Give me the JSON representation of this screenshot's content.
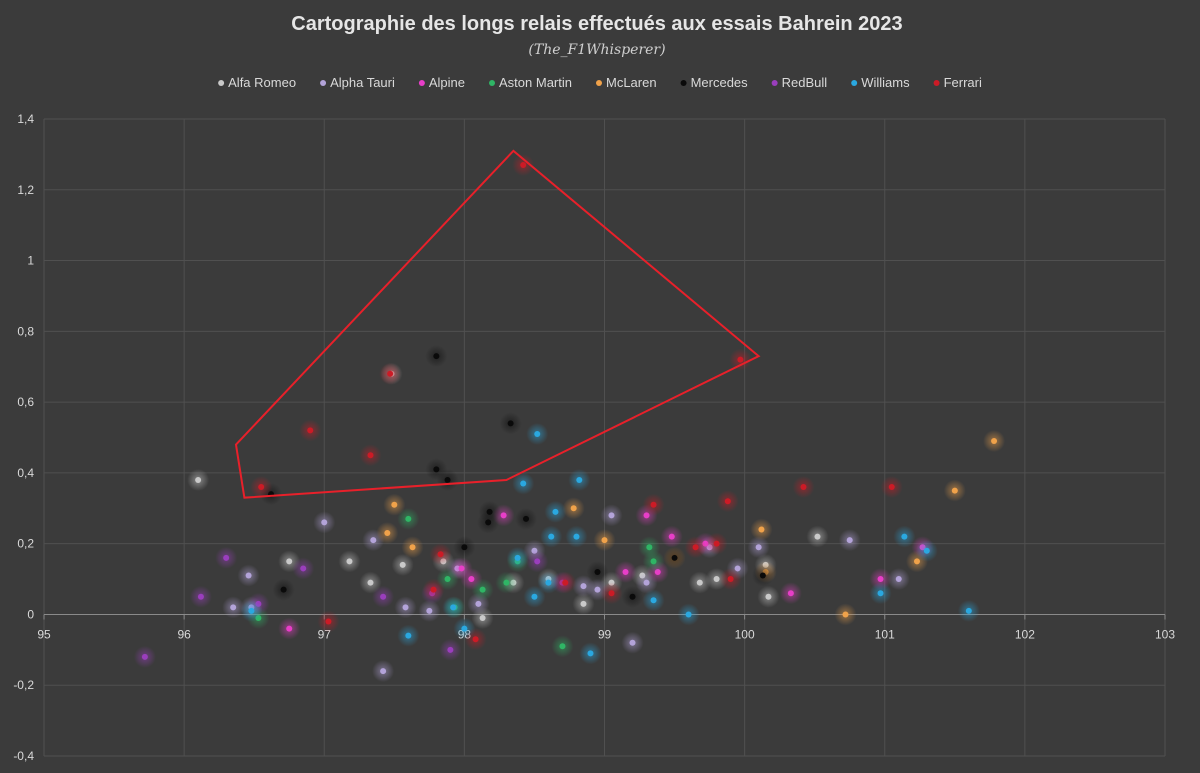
{
  "chart_data": {
    "type": "scatter",
    "title": "Cartographie des longs relais effectués aux essais Bahrein 2023",
    "subtitle": "(The_F1Whisperer)",
    "xlabel": "",
    "ylabel": "",
    "xlim": [
      95,
      103
    ],
    "ylim": [
      -0.4,
      1.4
    ],
    "x_ticks": [
      95,
      96,
      97,
      98,
      99,
      100,
      101,
      102,
      103
    ],
    "x_tick_labels": [
      "95",
      "96",
      "97",
      "98",
      "99",
      "100",
      "101",
      "102",
      "103"
    ],
    "y_ticks": [
      -0.4,
      -0.2,
      0,
      0.2,
      0.4,
      0.6,
      0.8,
      1.0,
      1.2,
      1.4
    ],
    "y_tick_labels": [
      "-0,4",
      "-0,2",
      "0",
      "0,2",
      "0,4",
      "0,6",
      "0,8",
      "1",
      "1,2",
      "1,4"
    ],
    "grid": true,
    "legend_position": "top",
    "highlight_polygon": {
      "color": "#e8202a",
      "points": [
        [
          96.37,
          0.48
        ],
        [
          96.43,
          0.33
        ],
        [
          98.3,
          0.38
        ],
        [
          100.1,
          0.73
        ],
        [
          98.35,
          1.31
        ]
      ]
    },
    "series": [
      {
        "name": "Alfa Romeo",
        "color": "#c9c9c9",
        "points": [
          [
            96.1,
            0.38
          ],
          [
            97.48,
            0.68
          ],
          [
            96.75,
            0.15
          ],
          [
            97.18,
            0.15
          ],
          [
            97.33,
            0.09
          ],
          [
            97.56,
            0.14
          ],
          [
            98.13,
            -0.01
          ],
          [
            98.35,
            0.09
          ],
          [
            98.6,
            0.1
          ],
          [
            98.85,
            0.03
          ],
          [
            99.05,
            0.09
          ],
          [
            99.68,
            0.09
          ],
          [
            99.8,
            0.1
          ],
          [
            100.15,
            0.14
          ],
          [
            100.17,
            0.05
          ],
          [
            100.52,
            0.22
          ],
          [
            99.27,
            0.11
          ],
          [
            97.85,
            0.15
          ]
        ]
      },
      {
        "name": "Alpha Tauri",
        "color": "#b3a3d9",
        "points": [
          [
            96.35,
            0.02
          ],
          [
            96.46,
            0.11
          ],
          [
            96.48,
            0.02
          ],
          [
            97.0,
            0.26
          ],
          [
            97.35,
            0.21
          ],
          [
            97.58,
            0.02
          ],
          [
            97.75,
            0.01
          ],
          [
            97.95,
            0.13
          ],
          [
            98.1,
            0.03
          ],
          [
            98.5,
            0.18
          ],
          [
            98.85,
            0.08
          ],
          [
            98.95,
            0.07
          ],
          [
            99.05,
            0.28
          ],
          [
            99.2,
            -0.08
          ],
          [
            99.3,
            0.09
          ],
          [
            99.75,
            0.19
          ],
          [
            99.95,
            0.13
          ],
          [
            100.1,
            0.19
          ],
          [
            100.75,
            0.21
          ],
          [
            101.1,
            0.1
          ],
          [
            97.42,
            -0.16
          ]
        ]
      },
      {
        "name": "Alpine",
        "color": "#e83ec8",
        "points": [
          [
            96.75,
            -0.04
          ],
          [
            97.98,
            0.13
          ],
          [
            98.28,
            0.28
          ],
          [
            99.15,
            0.12
          ],
          [
            99.3,
            0.28
          ],
          [
            99.38,
            0.12
          ],
          [
            99.48,
            0.22
          ],
          [
            99.72,
            0.2
          ],
          [
            100.33,
            0.06
          ],
          [
            100.97,
            0.1
          ],
          [
            101.27,
            0.19
          ],
          [
            98.05,
            0.1
          ]
        ]
      },
      {
        "name": "Aston Martin",
        "color": "#2fb565",
        "points": [
          [
            96.53,
            -0.01
          ],
          [
            97.6,
            0.27
          ],
          [
            97.88,
            0.1
          ],
          [
            98.13,
            0.07
          ],
          [
            98.3,
            0.09
          ],
          [
            98.38,
            0.15
          ],
          [
            98.7,
            -0.09
          ],
          [
            99.32,
            0.19
          ],
          [
            99.35,
            0.15
          ],
          [
            97.93,
            0.02
          ]
        ]
      },
      {
        "name": "McLaren",
        "color": "#f0a24a",
        "points": [
          [
            97.45,
            0.23
          ],
          [
            97.5,
            0.31
          ],
          [
            97.63,
            0.19
          ],
          [
            98.78,
            0.3
          ],
          [
            99.0,
            0.21
          ],
          [
            99.5,
            0.16
          ],
          [
            100.12,
            0.24
          ],
          [
            100.15,
            0.12
          ],
          [
            100.72,
            0.0
          ],
          [
            101.23,
            0.15
          ],
          [
            101.5,
            0.35
          ],
          [
            101.78,
            0.49
          ]
        ]
      },
      {
        "name": "Mercedes",
        "color": "#0a0a0a",
        "points": [
          [
            96.62,
            0.34
          ],
          [
            96.71,
            0.07
          ],
          [
            97.8,
            0.73
          ],
          [
            97.8,
            0.41
          ],
          [
            97.88,
            0.38
          ],
          [
            98.0,
            0.19
          ],
          [
            98.17,
            0.26
          ],
          [
            98.18,
            0.29
          ],
          [
            98.33,
            0.54
          ],
          [
            98.44,
            0.27
          ],
          [
            98.95,
            0.12
          ],
          [
            99.2,
            0.05
          ],
          [
            99.5,
            0.16
          ],
          [
            100.13,
            0.11
          ]
        ]
      },
      {
        "name": "RedBull",
        "color": "#9a3ebd",
        "points": [
          [
            95.72,
            -0.12
          ],
          [
            96.12,
            0.05
          ],
          [
            96.3,
            0.16
          ],
          [
            96.53,
            0.03
          ],
          [
            96.85,
            0.13
          ],
          [
            97.42,
            0.05
          ],
          [
            97.77,
            0.06
          ],
          [
            97.9,
            -0.1
          ],
          [
            98.52,
            0.15
          ],
          [
            98.7,
            0.09
          ]
        ]
      },
      {
        "name": "Williams",
        "color": "#2aa8e0",
        "points": [
          [
            96.48,
            0.01
          ],
          [
            97.6,
            -0.06
          ],
          [
            97.92,
            0.02
          ],
          [
            98.0,
            -0.04
          ],
          [
            98.38,
            0.16
          ],
          [
            98.42,
            0.37
          ],
          [
            98.5,
            0.05
          ],
          [
            98.52,
            0.51
          ],
          [
            98.62,
            0.22
          ],
          [
            98.65,
            0.29
          ],
          [
            98.8,
            0.22
          ],
          [
            98.82,
            0.38
          ],
          [
            98.9,
            -0.11
          ],
          [
            99.35,
            0.04
          ],
          [
            99.6,
            0.0
          ],
          [
            100.97,
            0.06
          ],
          [
            101.14,
            0.22
          ],
          [
            101.3,
            0.18
          ],
          [
            101.6,
            0.01
          ],
          [
            98.6,
            0.09
          ]
        ]
      },
      {
        "name": "Ferrari",
        "color": "#cc1b26",
        "points": [
          [
            96.55,
            0.36
          ],
          [
            96.9,
            0.52
          ],
          [
            97.03,
            -0.02
          ],
          [
            97.33,
            0.45
          ],
          [
            97.47,
            0.68
          ],
          [
            97.78,
            0.07
          ],
          [
            97.83,
            0.17
          ],
          [
            98.08,
            -0.07
          ],
          [
            98.42,
            1.27
          ],
          [
            98.72,
            0.09
          ],
          [
            99.05,
            0.06
          ],
          [
            99.35,
            0.31
          ],
          [
            99.65,
            0.19
          ],
          [
            99.8,
            0.2
          ],
          [
            99.88,
            0.32
          ],
          [
            99.9,
            0.1
          ],
          [
            99.97,
            0.72
          ],
          [
            100.42,
            0.36
          ],
          [
            101.05,
            0.36
          ]
        ]
      }
    ]
  }
}
